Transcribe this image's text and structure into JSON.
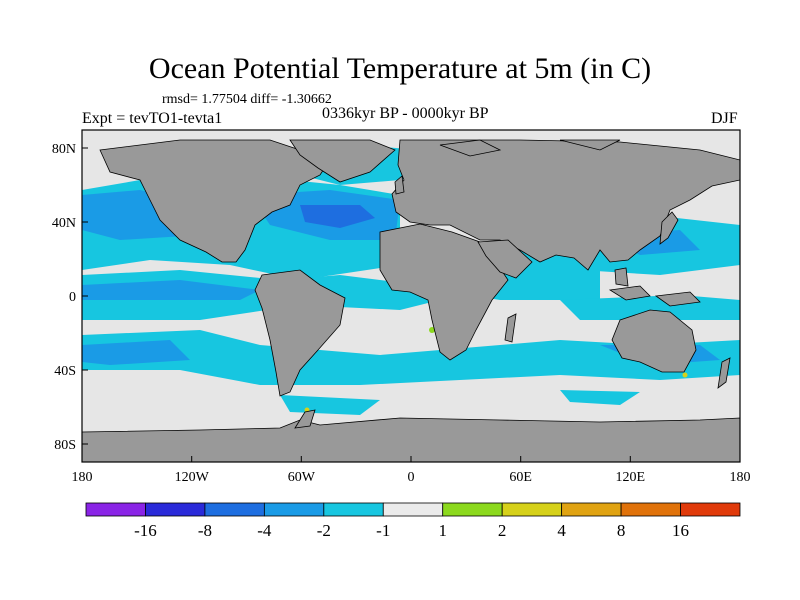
{
  "title": "Ocean Potential Temperature at 5m (in C)",
  "stats": "rmsd= 1.77504 diff= -1.30662",
  "experiment": "Expt = tevTO1-tevta1",
  "period": "0336kyr BP - 0000kyr BP",
  "season": "DJF",
  "colors": {
    "land": "#999999",
    "near_zero": "#e6e6e6",
    "background": "#ffffff"
  },
  "axes": {
    "x_ticks": [
      "180",
      "120W",
      "60W",
      "0",
      "60E",
      "120E",
      "180"
    ],
    "y_ticks": [
      "80N",
      "40N",
      "0",
      "40S",
      "80S"
    ]
  },
  "colorbar": {
    "colors": [
      "#8a24e6",
      "#2a2ad9",
      "#1e6ee0",
      "#1a9be6",
      "#17c6e0",
      "#ebebeb",
      "#8cd91e",
      "#d6d11a",
      "#e0a312",
      "#e0720a",
      "#e03a0a"
    ],
    "labels": [
      "-16",
      "-8",
      "-4",
      "-2",
      "-1",
      "1",
      "2",
      "4",
      "8",
      "16"
    ]
  }
}
